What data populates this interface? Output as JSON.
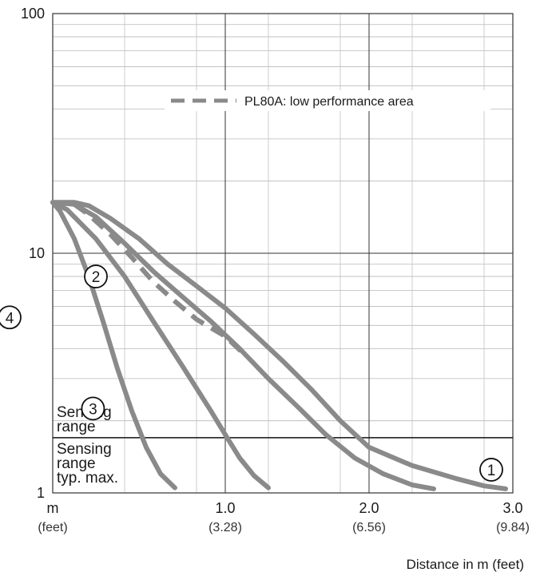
{
  "chart_data": {
    "type": "line",
    "title": "",
    "xlabel": "Distance in m (feet)",
    "xlim": [
      -0.2,
      3.0
    ],
    "ylim": [
      1,
      100
    ],
    "y_scale": "log",
    "grid": true,
    "x_ticks": [
      {
        "value": -0.2,
        "label": "m",
        "sublabel": "(feet)"
      },
      {
        "value": 1.0,
        "label": "1.0",
        "sublabel": "(3.28)"
      },
      {
        "value": 2.0,
        "label": "2.0",
        "sublabel": "(6.56)"
      },
      {
        "value": 3.0,
        "label": "3.0",
        "sublabel": "(9.84)"
      }
    ],
    "y_ticks": [
      {
        "value": 1,
        "label": "1"
      },
      {
        "value": 10,
        "label": "10"
      },
      {
        "value": 100,
        "label": "100"
      }
    ],
    "threshold": {
      "value": 1.7,
      "label_above": [
        "Sensing",
        "range"
      ],
      "label_below": [
        "Sensing",
        "range",
        "typ. max."
      ]
    },
    "legend": {
      "label": "PL80A: low performance area",
      "style": "dashed",
      "position": "top-right"
    },
    "line_color": "#8a8a8a",
    "series": [
      {
        "name": "①",
        "style": "solid",
        "label_at": {
          "x": 2.85,
          "y": 1.25
        },
        "points": [
          [
            -0.2,
            16.3
          ],
          [
            -0.05,
            16.3
          ],
          [
            0.05,
            15.8
          ],
          [
            0.2,
            14
          ],
          [
            0.4,
            11.5
          ],
          [
            0.6,
            9
          ],
          [
            0.8,
            7.3
          ],
          [
            1.0,
            5.9
          ],
          [
            1.2,
            4.6
          ],
          [
            1.4,
            3.55
          ],
          [
            1.6,
            2.7
          ],
          [
            1.8,
            2.0
          ],
          [
            2.0,
            1.55
          ],
          [
            2.3,
            1.3
          ],
          [
            2.6,
            1.15
          ],
          [
            2.8,
            1.07
          ],
          [
            2.95,
            1.04
          ]
        ]
      },
      {
        "name": "②",
        "style": "solid",
        "label_at": {
          "x": 0.1,
          "y": 8.0
        },
        "points": [
          [
            -0.2,
            16.3
          ],
          [
            -0.05,
            16
          ],
          [
            0.1,
            14.2
          ],
          [
            0.3,
            11
          ],
          [
            0.5,
            8.4
          ],
          [
            0.7,
            6.6
          ],
          [
            0.9,
            5.2
          ],
          [
            1.1,
            4.0
          ],
          [
            1.3,
            3.0
          ],
          [
            1.5,
            2.3
          ],
          [
            1.7,
            1.75
          ],
          [
            1.9,
            1.4
          ],
          [
            2.1,
            1.2
          ],
          [
            2.3,
            1.08
          ],
          [
            2.45,
            1.04
          ]
        ]
      },
      {
        "name": "③",
        "style": "solid",
        "label_at": {
          "x": 0.08,
          "y": 2.25
        },
        "points": [
          [
            -0.2,
            16.3
          ],
          [
            -0.1,
            15.2
          ],
          [
            0.1,
            11.5
          ],
          [
            0.3,
            8.0
          ],
          [
            0.5,
            5.2
          ],
          [
            0.7,
            3.4
          ],
          [
            0.9,
            2.2
          ],
          [
            1.0,
            1.75
          ],
          [
            1.1,
            1.4
          ],
          [
            1.2,
            1.18
          ],
          [
            1.3,
            1.05
          ]
        ]
      },
      {
        "name": "④",
        "style": "solid",
        "label_at": {
          "x": -0.5,
          "y": 5.4
        },
        "points": [
          [
            -0.2,
            16.3
          ],
          [
            -0.15,
            15
          ],
          [
            -0.05,
            11.5
          ],
          [
            0.05,
            8.0
          ],
          [
            0.15,
            5.2
          ],
          [
            0.25,
            3.3
          ],
          [
            0.35,
            2.2
          ],
          [
            0.45,
            1.55
          ],
          [
            0.55,
            1.2
          ],
          [
            0.65,
            1.05
          ]
        ]
      },
      {
        "name": "PL80A",
        "style": "dashed",
        "points": [
          [
            -0.05,
            16.0
          ],
          [
            0.05,
            14.5
          ],
          [
            0.2,
            12
          ],
          [
            0.35,
            9.6
          ],
          [
            0.5,
            7.6
          ],
          [
            0.65,
            6.3
          ],
          [
            0.8,
            5.3
          ],
          [
            1.0,
            4.5
          ],
          [
            1.15,
            3.7
          ]
        ]
      }
    ]
  }
}
